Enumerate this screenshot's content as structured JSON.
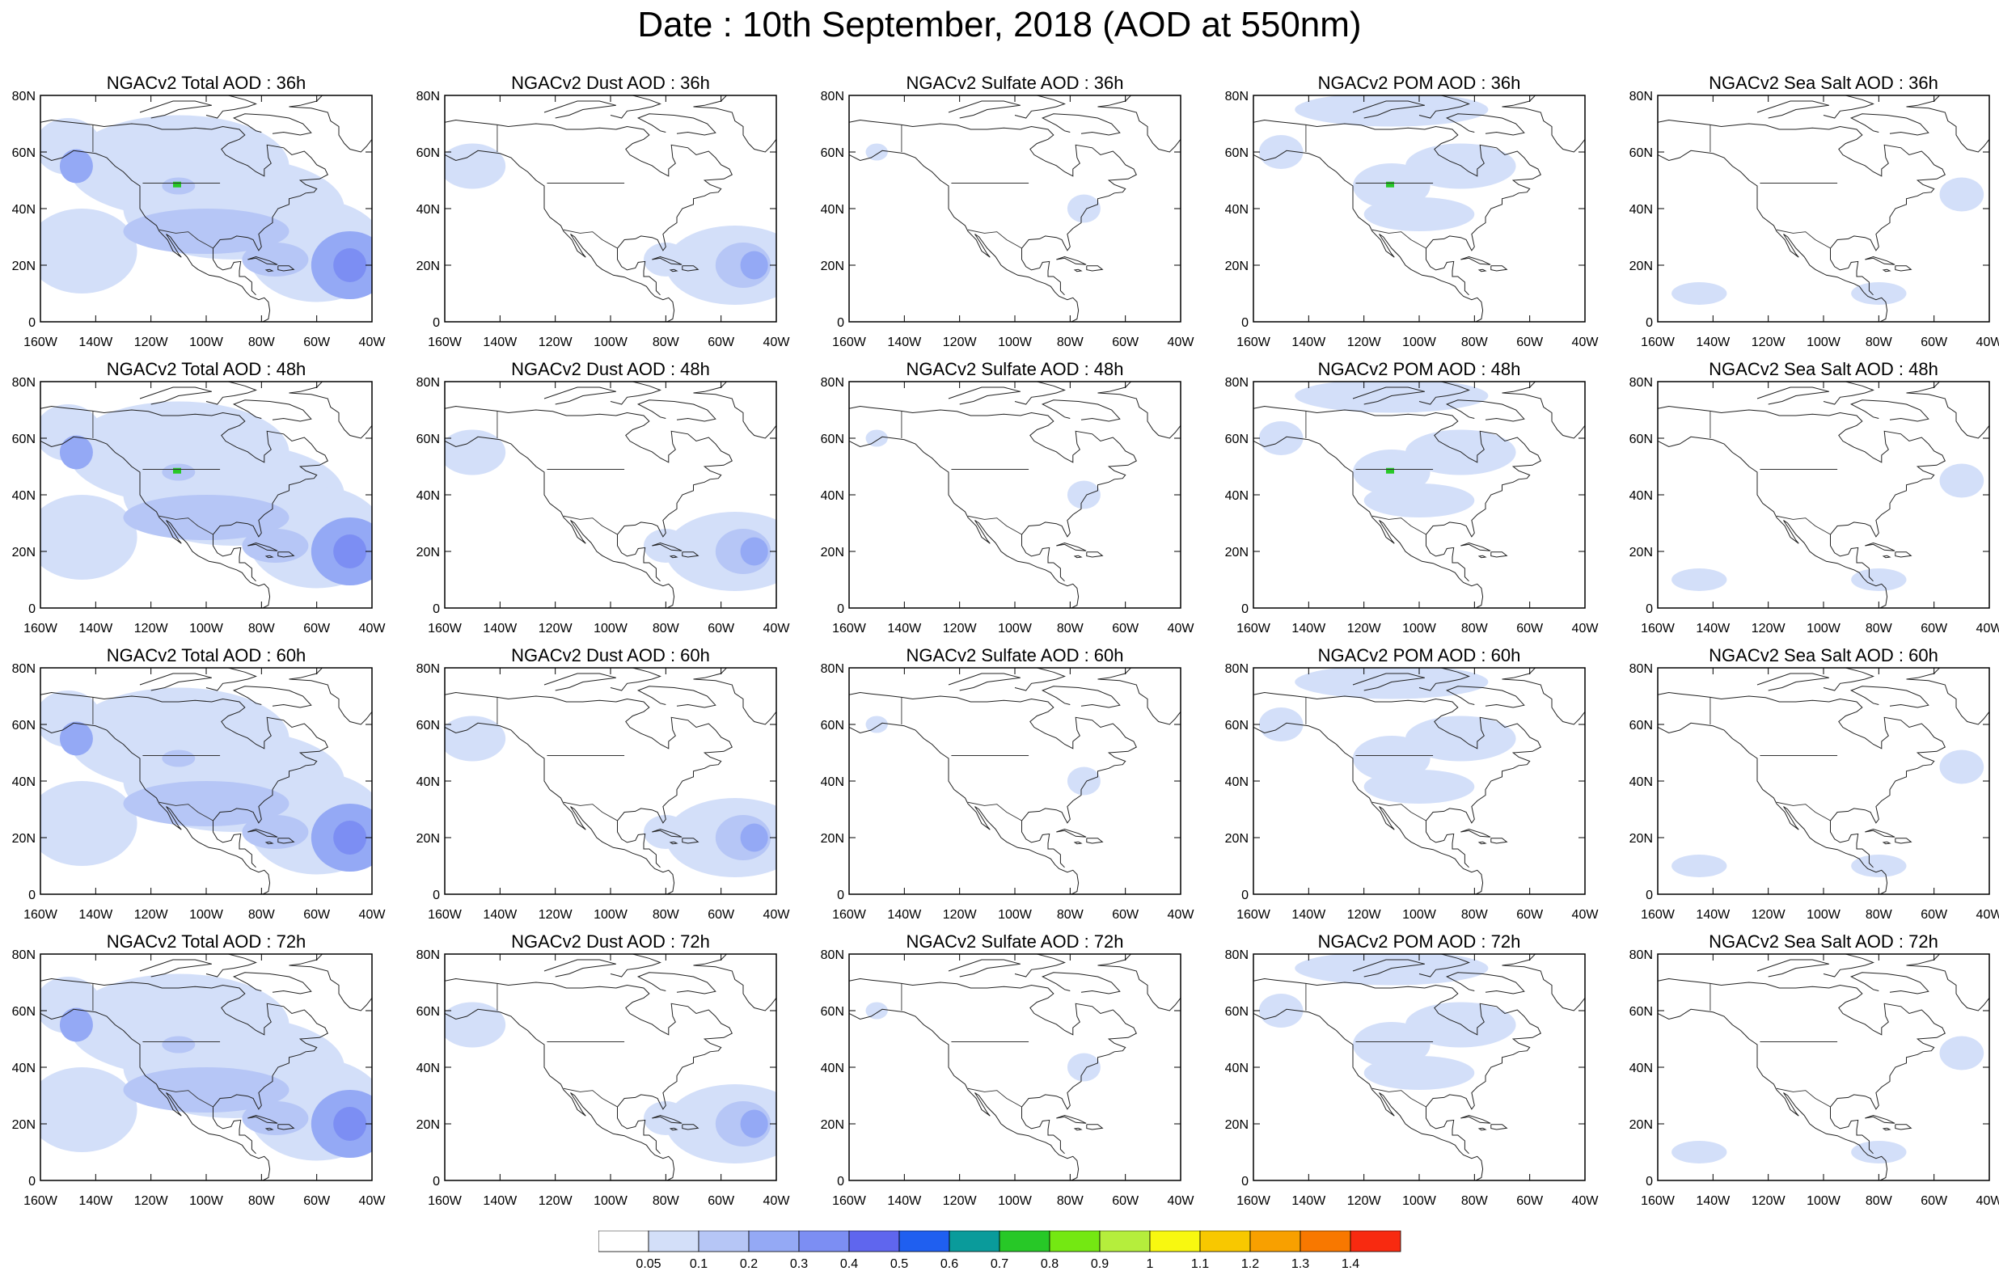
{
  "title": "Date : 10th September, 2018 (AOD at 550nm)",
  "rows": [
    {
      "hour": "36h",
      "titles": [
        "NGACv2 Total AOD : 36h",
        "NGACv2 Dust AOD : 36h",
        "NGACv2 Sulfate AOD : 36h",
        "NGACv2 POM AOD : 36h",
        "NGACv2 Sea Salt AOD : 36h"
      ]
    },
    {
      "hour": "48h",
      "titles": [
        "NGACv2 Total AOD : 48h",
        "NGACv2 Dust AOD : 48h",
        "NGACv2 Sulfate AOD : 48h",
        "NGACv2 POM AOD : 48h",
        "NGACv2 Sea Salt AOD : 48h"
      ]
    },
    {
      "hour": "60h",
      "titles": [
        "NGACv2 Total AOD : 60h",
        "NGACv2 Dust AOD : 60h",
        "NGACv2 Sulfate AOD : 60h",
        "NGACv2 POM AOD : 60h",
        "NGACv2 Sea Salt AOD : 60h"
      ]
    },
    {
      "hour": "72h",
      "titles": [
        "NGACv2 Total AOD : 72h",
        "NGACv2 Dust AOD : 72h",
        "NGACv2 Sulfate AOD : 72h",
        "NGACv2 POM AOD : 72h",
        "NGACv2 Sea Salt  AOD : 72h"
      ]
    }
  ],
  "lon_ticks": [
    "160W",
    "140W",
    "120W",
    "100W",
    "80W",
    "60W",
    "40W"
  ],
  "lat_ticks": [
    "80N",
    "60N",
    "40N",
    "20N",
    "0"
  ],
  "colorbar": {
    "labels": [
      "0.05",
      "0.1",
      "0.2",
      "0.3",
      "0.4",
      "0.5",
      "0.6",
      "0.7",
      "0.8",
      "0.9",
      "1",
      "1.1",
      "1.2",
      "1.3",
      "1.4"
    ],
    "colors": [
      "#ffffff",
      "#d3dff9",
      "#b6c6f6",
      "#94a9f5",
      "#7c8ef3",
      "#5f66ee",
      "#1f5ff0",
      "#0a9b9b",
      "#27c827",
      "#74e812",
      "#b5ee3c",
      "#f8f810",
      "#f8c800",
      "#f8a000",
      "#f87800",
      "#f82a10"
    ]
  },
  "species_fields": {
    "total": "AOD shading: broad light blue (0.05-0.2) over most of domain, 0.2-0.4 over NE Pacific and Atlantic hurricane region near 20N 50W, green spot (0.8-0.9) near 48N 110W at 36h/48h",
    "dust": "Light blue plume over tropical Atlantic 10-35N, 80-40W and NE Pacific",
    "sulfate": "Mostly below 0.05, small patches near Alaska and East Coast",
    "pom": "Light blue over Canada and western US smoke, green spot near 48N 110W at 36h/48h",
    "sea_salt": "Mostly below 0.05, small patches over NE Atlantic and tropical Pacific"
  }
}
